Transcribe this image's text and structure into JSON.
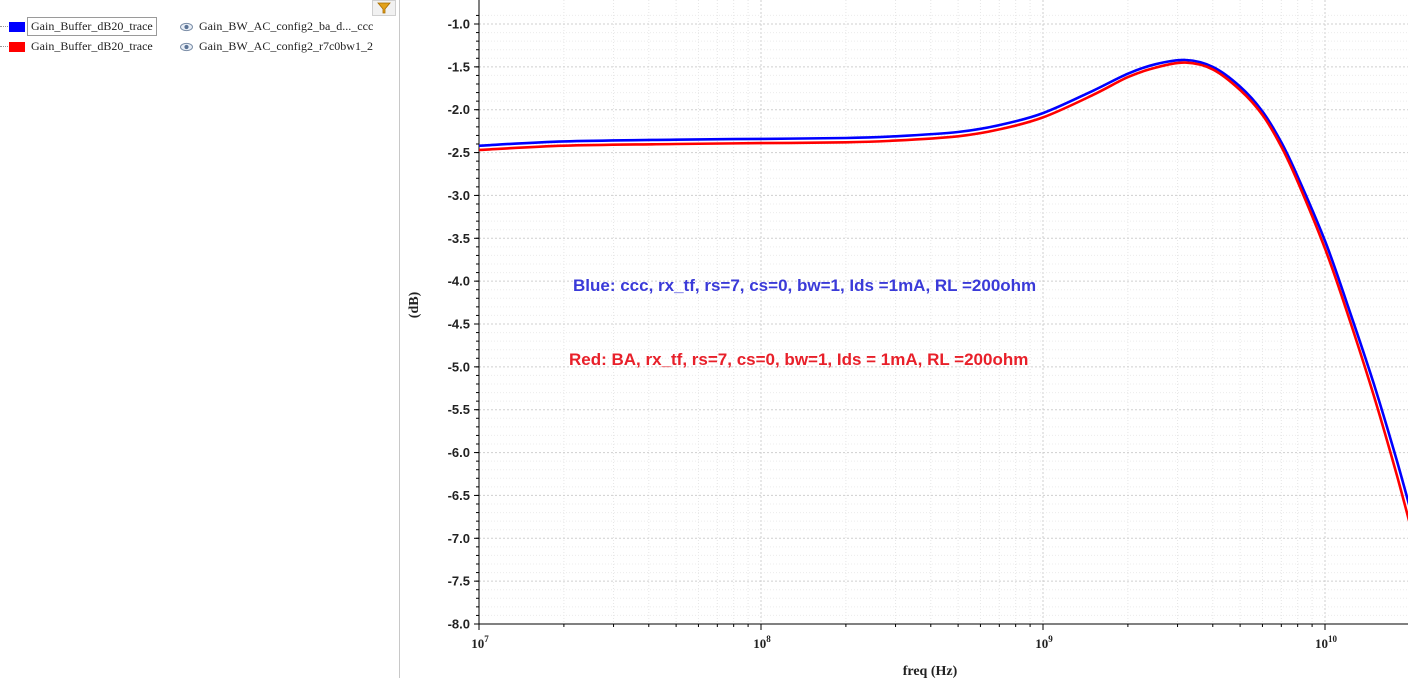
{
  "legend": {
    "items": [
      {
        "trace": "Gain_Buffer_dB20_trace",
        "test": "Gain_BW_AC_config2_ba_d..._ccc",
        "color": "#0000ff",
        "selected": true
      },
      {
        "trace": "Gain_Buffer_dB20_trace",
        "test": "Gain_BW_AC_config2_r7c0bw1_2",
        "color": "#ff0000",
        "selected": false
      }
    ],
    "filter_icon": "filter-icon",
    "visibility_icon": "eye-icon"
  },
  "chart_data": {
    "type": "line",
    "xlabel": "freq (Hz)",
    "ylabel": "(dB)",
    "xscale": "log",
    "xlim": [
      10000000.0,
      21000000000.0
    ],
    "ylim": [
      -8.0,
      -1.0
    ],
    "grid": true,
    "x_ticks": [
      {
        "base": "10",
        "exp": "7",
        "value": 10000000.0
      },
      {
        "base": "10",
        "exp": "8",
        "value": 100000000.0
      },
      {
        "base": "10",
        "exp": "9",
        "value": 1000000000.0
      },
      {
        "base": "10",
        "exp": "10",
        "value": 10000000000.0
      }
    ],
    "y_ticks": [
      "-1.0",
      "-1.5",
      "-2.0",
      "-2.5",
      "-3.0",
      "-3.5",
      "-4.0",
      "-4.5",
      "-5.0",
      "-5.5",
      "-6.0",
      "-6.5",
      "-7.0",
      "-7.5",
      "-8.0"
    ],
    "series": [
      {
        "color": "#0000ff",
        "x": [
          10000000.0,
          20000000.0,
          50000000.0,
          100000000.0,
          200000000.0,
          300000000.0,
          500000000.0,
          700000000.0,
          1000000000.0,
          1500000000.0,
          2000000000.0,
          2500000000.0,
          3200000000.0,
          4000000000.0,
          5000000000.0,
          6000000000.0,
          7000000000.0,
          8000000000.0,
          10000000000.0,
          12000000000.0,
          15000000000.0,
          18000000000.0,
          21000000000.0
        ],
        "y": [
          -2.42,
          -2.37,
          -2.35,
          -2.34,
          -2.33,
          -2.31,
          -2.26,
          -2.18,
          -2.04,
          -1.78,
          -1.58,
          -1.47,
          -1.42,
          -1.5,
          -1.73,
          -2.02,
          -2.38,
          -2.78,
          -3.53,
          -4.27,
          -5.23,
          -6.1,
          -6.9
        ]
      },
      {
        "color": "#ff0000",
        "x": [
          10000000.0,
          20000000.0,
          50000000.0,
          100000000.0,
          200000000.0,
          300000000.0,
          500000000.0,
          700000000.0,
          1000000000.0,
          1500000000.0,
          2000000000.0,
          2500000000.0,
          3200000000.0,
          4000000000.0,
          5000000000.0,
          6000000000.0,
          7000000000.0,
          8000000000.0,
          10000000000.0,
          12000000000.0,
          15000000000.0,
          18000000000.0,
          21000000000.0
        ],
        "y": [
          -2.47,
          -2.42,
          -2.4,
          -2.39,
          -2.38,
          -2.36,
          -2.31,
          -2.23,
          -2.09,
          -1.83,
          -1.62,
          -1.51,
          -1.45,
          -1.53,
          -1.77,
          -2.06,
          -2.43,
          -2.84,
          -3.62,
          -4.37,
          -5.37,
          -6.27,
          -7.1
        ]
      }
    ],
    "annotations": [
      {
        "text": "Blue: ccc, rx_tf, rs=7, cs=0, bw=1, Ids =1mA, RL =200ohm",
        "color": "#3a3ad8"
      },
      {
        "text": "Red:  BA, rx_tf, rs=7, cs=0, bw=1, Ids = 1mA, RL =200ohm",
        "color": "#e8202a"
      }
    ]
  }
}
